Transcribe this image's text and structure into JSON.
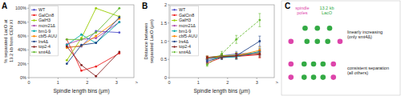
{
  "chart_data": [
    {
      "type": "line",
      "title": "A",
      "xlabel": "Spindle length bins (μm)",
      "ylabel": "% separated LacO at\n13.2 kb from CEN XI",
      "annotations": [
        ">"
      ],
      "x": [
        1.3,
        1.8,
        2.3,
        3.1
      ],
      "xlim": [
        0,
        3.6
      ],
      "xticks": [
        0,
        1,
        2,
        3
      ],
      "ylim": [
        0,
        1.05
      ],
      "yticks": [
        {
          "value": 0,
          "label": "0%"
        },
        {
          "value": 0.2,
          "label": "20%"
        },
        {
          "value": 0.4,
          "label": "40%"
        },
        {
          "value": 0.6,
          "label": "60%"
        },
        {
          "value": 0.8,
          "label": "80%"
        },
        {
          "value": 1.0,
          "label": "100%"
        }
      ],
      "marker": "circle",
      "legend": "upper left",
      "series": [
        {
          "name": "WT",
          "color": "#5555cc",
          "values": [
            0.44,
            0.45,
            0.67,
            0.65
          ]
        },
        {
          "name": "GalCin8",
          "color": "#ee2222",
          "values": [
            0.55,
            0.1,
            0.16,
            0.35
          ]
        },
        {
          "name": "GalH3",
          "color": "#99cc00",
          "values": [
            0.25,
            0.57,
            1.0,
            0.88
          ]
        },
        {
          "name": "mcm21Δ",
          "color": "#aa44aa",
          "values": [
            0.48,
            0.55,
            0.57,
            0.8
          ]
        },
        {
          "name": "brn1-9",
          "color": "#00aaaa",
          "values": [
            0.47,
            0.62,
            0.5,
            0.8
          ]
        },
        {
          "name": "cbf5-AUU",
          "color": "#ff8800",
          "values": [
            0.43,
            0.46,
            0.6,
            0.85
          ]
        },
        {
          "name": "lrs4Δ",
          "color": "#224488",
          "values": [
            0.2,
            0.47,
            0.5,
            0.87
          ]
        },
        {
          "name": "top2-4",
          "color": "#882222",
          "values": [
            0.45,
            0.18,
            0.02,
            0.37
          ]
        },
        {
          "name": "smt4Δ",
          "color": "#66bb33",
          "values": [
            0.55,
            0.55,
            0.65,
            1.0
          ]
        }
      ]
    },
    {
      "type": "line",
      "title": "B",
      "xlabel": "Spindle length bins (μm)",
      "ylabel": "Distance between\nseparated LacO (μm)",
      "annotations": [
        ">"
      ],
      "x": [
        1.3,
        1.8,
        2.3,
        3.1
      ],
      "xlim": [
        0,
        3.6
      ],
      "xticks": [
        0,
        1,
        2,
        3
      ],
      "ylim": [
        0,
        2.0
      ],
      "yticks": [
        0,
        0.5,
        {
          "value": 1.0,
          "label": "1.0"
        },
        1.5,
        2
      ],
      "marker": "circle",
      "legend": "upper left",
      "series": [
        {
          "name": "WT",
          "color": "#5555cc",
          "values": [
            0.55,
            0.6,
            0.65,
            0.68
          ],
          "errors": [
            0.04,
            0.05,
            0.07,
            0.09
          ]
        },
        {
          "name": "GalCin8",
          "color": "#ee2222",
          "values": [
            0.4,
            0.55,
            0.58,
            0.63
          ],
          "errors": [
            0.04,
            0.05,
            0.07,
            0.09
          ]
        },
        {
          "name": "GalH3",
          "color": "#99cc00",
          "values": [
            0.55,
            0.6,
            0.62,
            0.68
          ],
          "errors": [
            0.04,
            0.05,
            0.07,
            0.09
          ]
        },
        {
          "name": "mcm21Δ",
          "color": "#aa44aa",
          "values": [
            0.5,
            0.56,
            0.58,
            0.7
          ],
          "errors": [
            0.04,
            0.05,
            0.07,
            0.09
          ]
        },
        {
          "name": "brn1-9",
          "color": "#00aaaa",
          "values": [
            0.52,
            0.55,
            0.57,
            0.72
          ],
          "errors": [
            0.04,
            0.05,
            0.07,
            0.09
          ]
        },
        {
          "name": "cbf5-AUU",
          "color": "#ff8800",
          "values": [
            0.55,
            0.57,
            0.6,
            0.75
          ],
          "errors": [
            0.04,
            0.05,
            0.07,
            0.09
          ]
        },
        {
          "name": "lrs4Δ",
          "color": "#224488",
          "values": [
            0.45,
            0.56,
            0.6,
            1.0
          ],
          "errors": [
            0.04,
            0.05,
            0.07,
            0.14
          ]
        },
        {
          "name": "top2-4",
          "color": "#882222",
          "values": [
            0.55,
            0.58,
            0.6,
            0.65
          ],
          "errors": [
            0.04,
            0.05,
            0.07,
            0.09
          ]
        },
        {
          "name": "smt4Δ",
          "color": "#66bb33",
          "values": [
            0.35,
            0.65,
            1.05,
            1.58
          ],
          "errors": [
            0.04,
            0.07,
            0.11,
            0.18
          ],
          "line_style": "dashed"
        }
      ]
    },
    {
      "type": "diagram",
      "title": "C",
      "series": [
        {
          "name": "spindle\npoles",
          "color": "#dd44aa"
        },
        {
          "name": "13.2 kb\nLacO",
          "color": "#33aa44"
        }
      ],
      "annotations": [
        "linearly increasing\n(only smt4Δ)",
        "consistent separation\n(all others)"
      ]
    }
  ]
}
